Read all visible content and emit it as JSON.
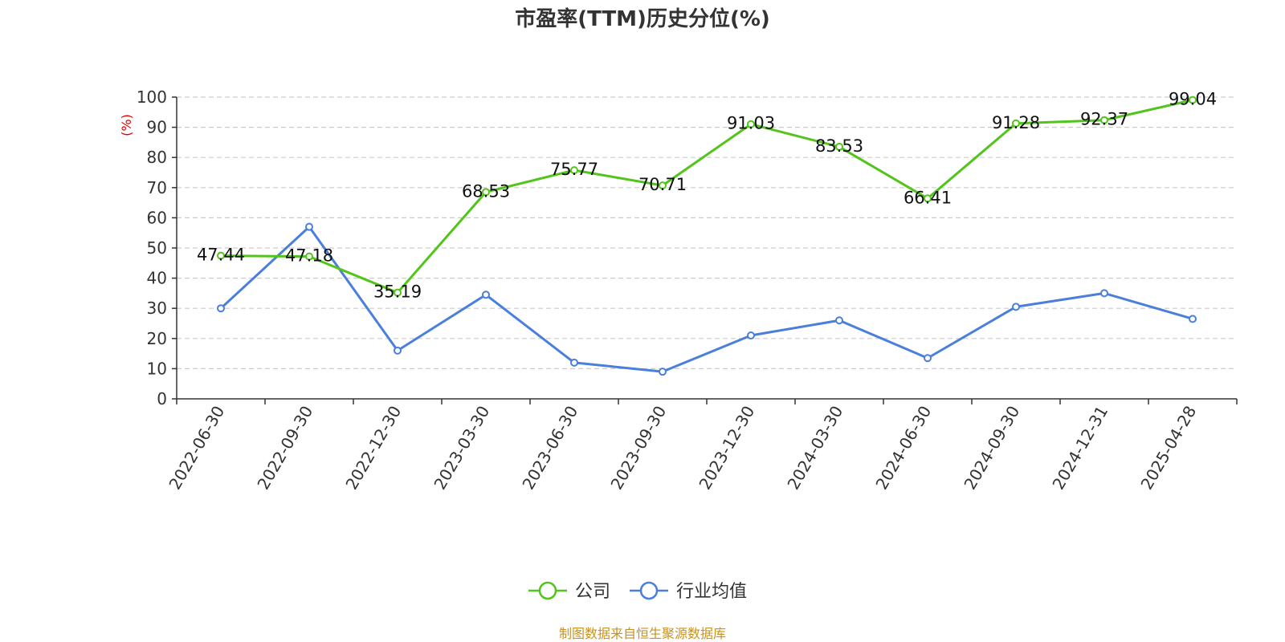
{
  "chart_data": {
    "type": "line",
    "title": "市盈率(TTM)历史分位(%)",
    "ylabel": "(%)",
    "ylim": [
      0,
      100
    ],
    "yticks": [
      0,
      10,
      20,
      30,
      40,
      50,
      60,
      70,
      80,
      90,
      100
    ],
    "grid": "horizontal dashed",
    "legend_position": "bottom-center",
    "x": [
      "2022-06-30",
      "2022-09-30",
      "2022-12-30",
      "2023-03-30",
      "2023-06-30",
      "2023-09-30",
      "2023-12-30",
      "2024-03-30",
      "2024-06-30",
      "2024-09-30",
      "2024-12-31",
      "2025-04-28"
    ],
    "series": [
      {
        "name": "公司",
        "color": "#52c41a",
        "labels_shown": true,
        "values": [
          47.44,
          47.18,
          35.19,
          68.53,
          75.77,
          70.71,
          91.03,
          83.53,
          66.41,
          91.28,
          92.37,
          99.04
        ],
        "labels": [
          "47.44",
          "47.18",
          "35.19",
          "68.53",
          "75.77",
          "70.71",
          "91.03",
          "83.53",
          "66.41",
          "91.28",
          "92.37",
          "99.04"
        ]
      },
      {
        "name": "行业均值",
        "color": "#4a7fdc",
        "labels_shown": false,
        "values": [
          30,
          57,
          16,
          34.5,
          12,
          9,
          21,
          26,
          13.5,
          30.5,
          35,
          26.5
        ]
      }
    ]
  },
  "source_text": "制图数据来自恒生聚源数据库",
  "colors": {
    "axis": "#333333",
    "grid": "#cccccc",
    "ylabel": "#e00000",
    "source": "#c8921e"
  }
}
